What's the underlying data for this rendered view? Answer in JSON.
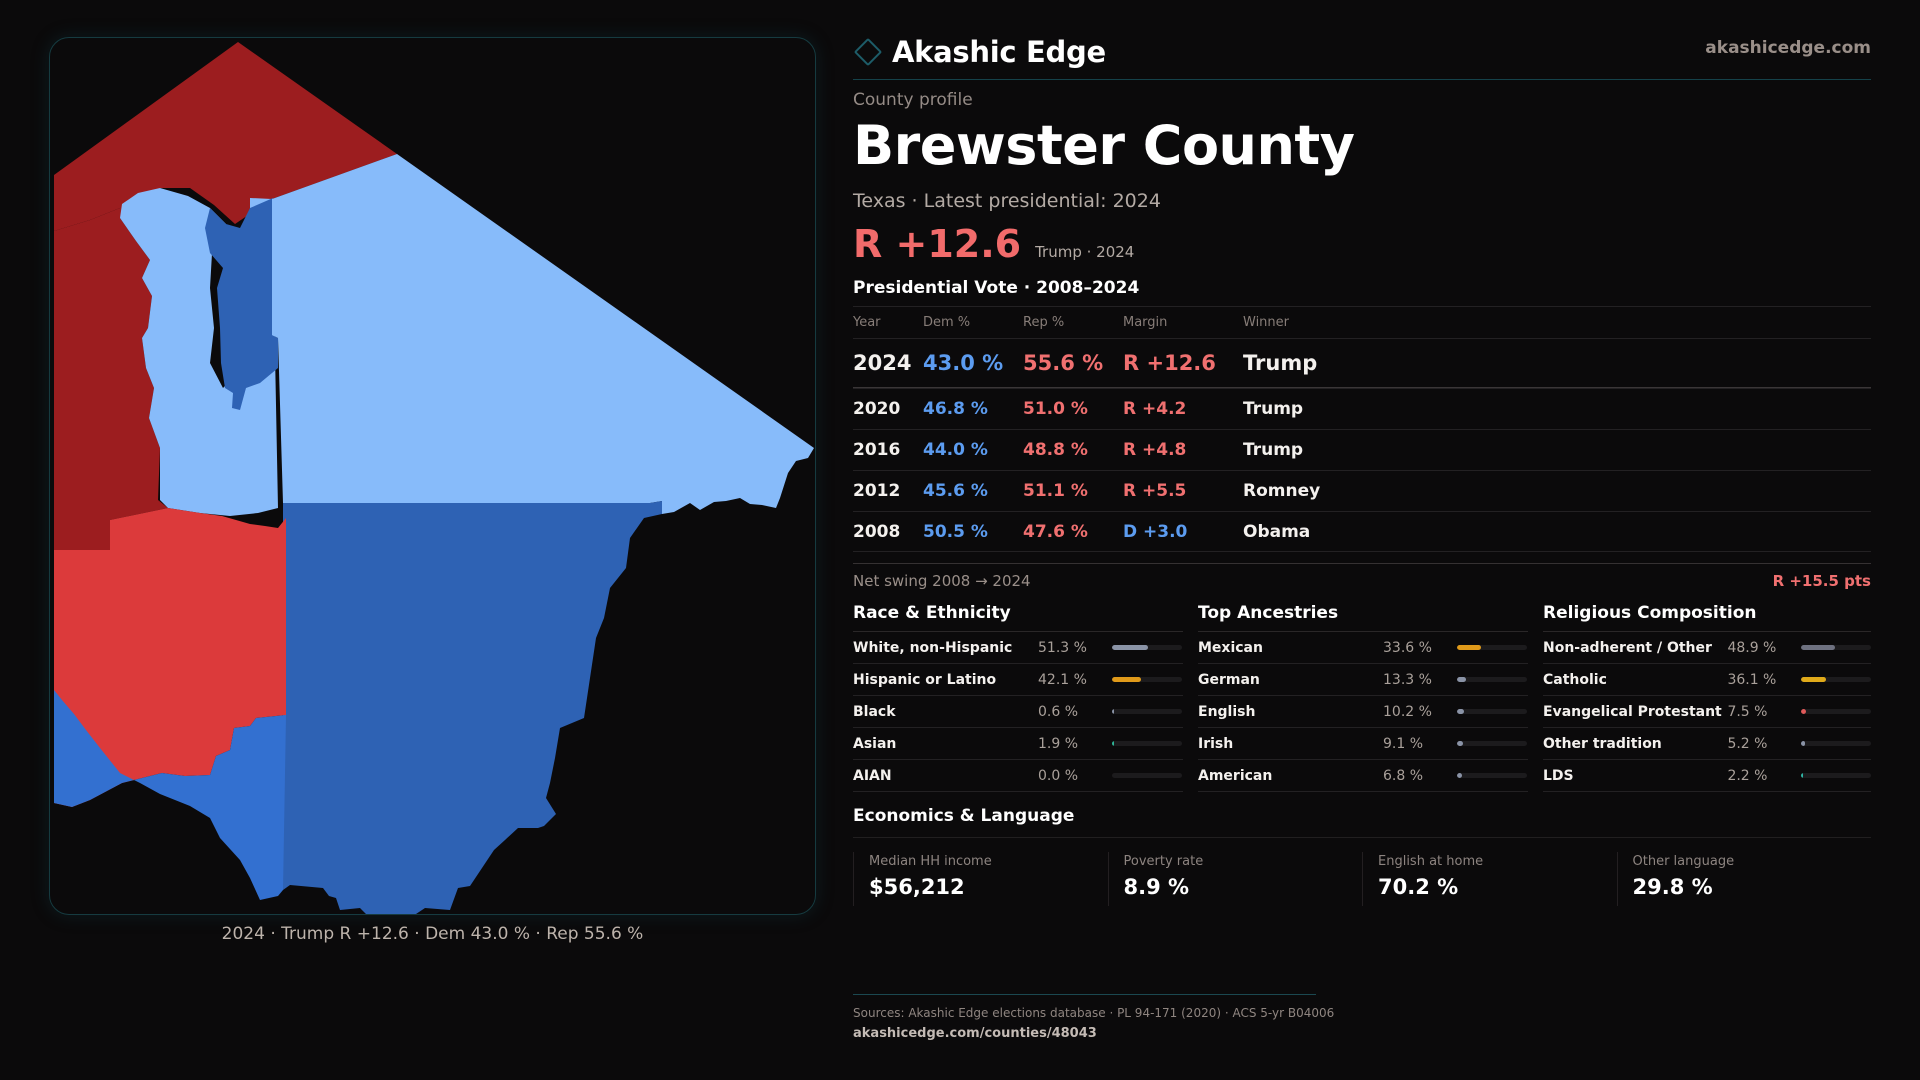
{
  "brand": {
    "name": "Akashic Edge",
    "url": "akashicedge.com",
    "logo_icon": "diamond-icon",
    "accent": "#1d5c68"
  },
  "header": {
    "kicker": "County profile",
    "title": "Brewster County",
    "subtitle": "Texas · Latest presidential: 2024",
    "margin": "R +12.6",
    "margin_note": "Trump · 2024"
  },
  "map": {
    "caption": "2024 · Trump R +12.6 · Dem 43.0 % · Rep 55.6 %",
    "colors": {
      "rep_strong": "#9c1d1f",
      "rep_lean": "#dc3a3b",
      "dem_strong": "#2e62b4",
      "dem_mid": "#3370d0",
      "dem_light": "#87bbfa"
    }
  },
  "vote": {
    "title": "Presidential Vote · 2008–2024",
    "headers": {
      "year": "Year",
      "dem": "Dem %",
      "rep": "Rep %",
      "margin": "Margin",
      "winner": "Winner"
    },
    "rows": [
      {
        "year": "2024",
        "dem": "43.0 %",
        "rep": "55.6 %",
        "margin": "R +12.6",
        "party": "R",
        "winner": "Trump"
      },
      {
        "year": "2020",
        "dem": "46.8 %",
        "rep": "51.0 %",
        "margin": "R +4.2",
        "party": "R",
        "winner": "Trump"
      },
      {
        "year": "2016",
        "dem": "44.0 %",
        "rep": "48.8 %",
        "margin": "R +4.8",
        "party": "R",
        "winner": "Trump"
      },
      {
        "year": "2012",
        "dem": "45.6 %",
        "rep": "51.1 %",
        "margin": "R +5.5",
        "party": "R",
        "winner": "Romney"
      },
      {
        "year": "2008",
        "dem": "50.5 %",
        "rep": "47.6 %",
        "margin": "D +3.0",
        "party": "D",
        "winner": "Obama"
      }
    ],
    "swing_label": "Net swing 2008 → 2024",
    "swing_value": "R +15.5 pts"
  },
  "race": {
    "title": "Race & Ethnicity",
    "rows": [
      {
        "label": "White, non-Hispanic",
        "pct": "51.3 %",
        "value": 51.3,
        "color": "#8a93a6"
      },
      {
        "label": "Hispanic or Latino",
        "pct": "42.1 %",
        "value": 42.1,
        "color": "#e09a1a"
      },
      {
        "label": "Black",
        "pct": "0.6 %",
        "value": 0.6,
        "color": "#8a93a6"
      },
      {
        "label": "Asian",
        "pct": "1.9 %",
        "value": 1.9,
        "color": "#2fb597"
      },
      {
        "label": "AIAN",
        "pct": "0.0 %",
        "value": 0.0,
        "color": "#8a93a6"
      }
    ]
  },
  "ancestry": {
    "title": "Top Ancestries",
    "rows": [
      {
        "label": "Mexican",
        "pct": "33.6 %",
        "value": 33.6,
        "color": "#e09a1a"
      },
      {
        "label": "German",
        "pct": "13.3 %",
        "value": 13.3,
        "color": "#8a93a6"
      },
      {
        "label": "English",
        "pct": "10.2 %",
        "value": 10.2,
        "color": "#8a93a6"
      },
      {
        "label": "Irish",
        "pct": "9.1 %",
        "value": 9.1,
        "color": "#8a93a6"
      },
      {
        "label": "American",
        "pct": "6.8 %",
        "value": 6.8,
        "color": "#8a93a6"
      }
    ]
  },
  "religion": {
    "title": "Religious Composition",
    "rows": [
      {
        "label": "Non-adherent / Other",
        "pct": "48.9 %",
        "value": 48.9,
        "color": "#6e7180"
      },
      {
        "label": "Catholic",
        "pct": "36.1 %",
        "value": 36.1,
        "color": "#e0aa1a"
      },
      {
        "label": "Evangelical Protestant",
        "pct": "7.5 %",
        "value": 7.5,
        "color": "#e05a5a"
      },
      {
        "label": "Other tradition",
        "pct": "5.2 %",
        "value": 5.2,
        "color": "#8a93a6"
      },
      {
        "label": "LDS",
        "pct": "2.2 %",
        "value": 2.2,
        "color": "#2fb5a5"
      }
    ]
  },
  "economics": {
    "title": "Economics & Language",
    "cards": [
      {
        "label": "Median HH income",
        "value": "$56,212"
      },
      {
        "label": "Poverty rate",
        "value": "8.9 %"
      },
      {
        "label": "English at home",
        "value": "70.2 %"
      },
      {
        "label": "Other language",
        "value": "29.8 %"
      }
    ]
  },
  "footer": {
    "sources": "Sources: Akashic Edge elections database · PL 94-171 (2020) · ACS 5-yr B04006",
    "url": "akashicedge.com/counties/48043"
  }
}
